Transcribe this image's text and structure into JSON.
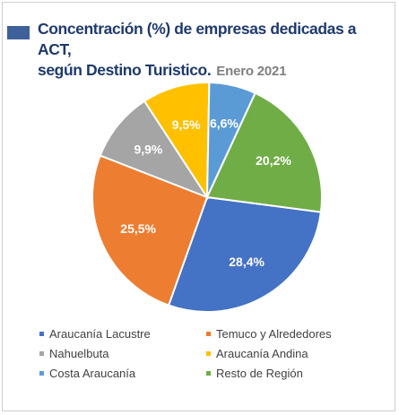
{
  "header": {
    "title_line1": "Concentración (%) de empresas dedicadas a ACT,",
    "title_line2": "según Destino Turistico.",
    "subtitle": "Enero 2021"
  },
  "chart_data": {
    "type": "pie",
    "title": "Concentración (%) de empresas dedicadas a ACT, según Destino Turistico.",
    "subtitle": "Enero 2021",
    "legend_position": "bottom",
    "slices": [
      {
        "name": "Araucanía Lacustre",
        "value": 28.4,
        "label": "28,4%",
        "color": "#4472c4"
      },
      {
        "name": "Temuco y Alrededores",
        "value": 25.5,
        "label": "25,5%",
        "color": "#ed7d31"
      },
      {
        "name": "Nahuelbuta",
        "value": 9.9,
        "label": "9,9%",
        "color": "#a5a5a5"
      },
      {
        "name": "Araucanía Andina",
        "value": 9.5,
        "label": "9,5%",
        "color": "#ffc000"
      },
      {
        "name": "Costa Araucanía",
        "value": 6.6,
        "label": "6,6%",
        "color": "#5b9bd5"
      },
      {
        "name": "Resto de Región",
        "value": 20.2,
        "label": "20,2%",
        "color": "#70ad47"
      }
    ]
  }
}
